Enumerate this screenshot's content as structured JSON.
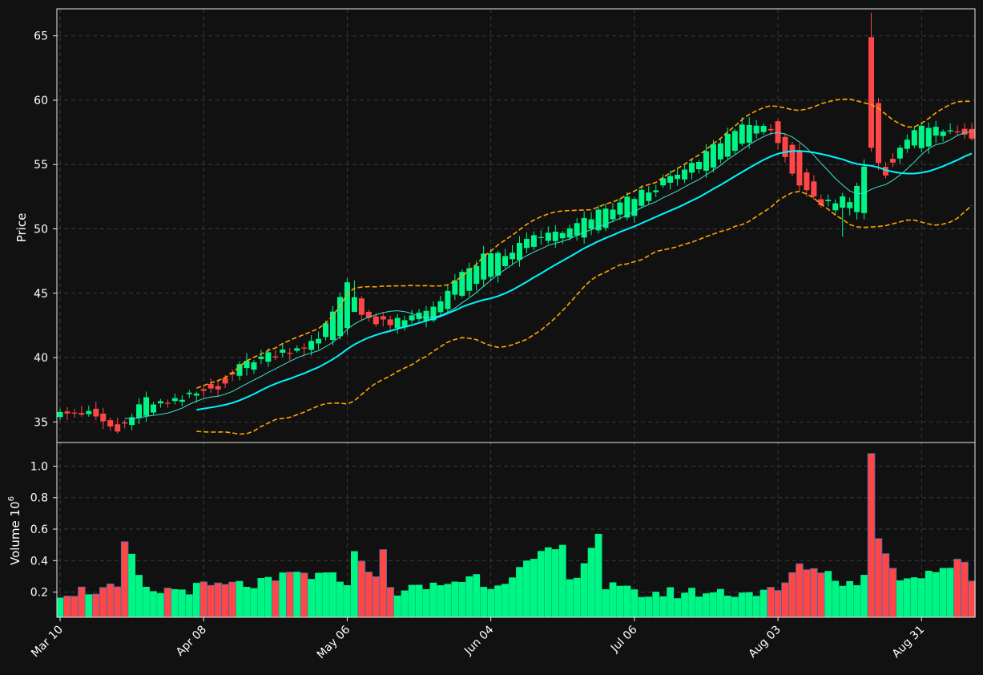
{
  "chart_data": {
    "type": "candlestick",
    "colors": {
      "background": "#111111",
      "up": "#00f587",
      "down": "#ff4747",
      "ma_fast": "#40e0d0",
      "ma_slow": "#00f5ff",
      "bollinger": "#ffa500",
      "grid": "#3a3a3a",
      "text": "#ffffff"
    },
    "price_panel": {
      "ylabel": "Price",
      "yticks": [
        35,
        40,
        45,
        50,
        55,
        60,
        65
      ],
      "ylim": [
        33.4,
        67.1
      ]
    },
    "volume_panel": {
      "ylabel": "Volume",
      "ylabel_exponent": "6",
      "yticks": [
        "0.2",
        "0.4",
        "0.6",
        "0.8",
        "1.0"
      ],
      "ylim": [
        0.04,
        1.15
      ]
    },
    "x_ticks": [
      {
        "label": "Mar 10",
        "index": 0
      },
      {
        "label": "Apr 08",
        "index": 20
      },
      {
        "label": "May 06",
        "index": 40
      },
      {
        "label": "Jun 04",
        "index": 60
      },
      {
        "label": "Jul 06",
        "index": 80
      },
      {
        "label": "Aug 03",
        "index": 100
      },
      {
        "label": "Aug 31",
        "index": 120
      }
    ],
    "anchors": {
      "open": [
        [
          0,
          35.6
        ],
        [
          5,
          35.8
        ],
        [
          8,
          34.8
        ],
        [
          12,
          35.4
        ],
        [
          15,
          36.6
        ],
        [
          19,
          36.9
        ],
        [
          22,
          38.1
        ],
        [
          26,
          39.0
        ],
        [
          30,
          40.2
        ],
        [
          33,
          40.6
        ],
        [
          36,
          41.0
        ],
        [
          40,
          42.1
        ],
        [
          42,
          44.5
        ],
        [
          44,
          43.2
        ],
        [
          48,
          42.4
        ],
        [
          52,
          43.0
        ],
        [
          55,
          44.6
        ],
        [
          59,
          46.0
        ],
        [
          62,
          46.8
        ],
        [
          66,
          48.9
        ],
        [
          70,
          49.2
        ],
        [
          75,
          50.0
        ],
        [
          80,
          51.3
        ],
        [
          84,
          53.2
        ],
        [
          88,
          54.4
        ],
        [
          92,
          55.1
        ],
        [
          96,
          56.8
        ],
        [
          100,
          58.3
        ],
        [
          103,
          55.8
        ],
        [
          106,
          52.2
        ],
        [
          110,
          51.3
        ],
        [
          112,
          51.2
        ],
        [
          113,
          64.9
        ],
        [
          115,
          54.5
        ],
        [
          117,
          55.8
        ],
        [
          120,
          56.4
        ],
        [
          124,
          57.4
        ],
        [
          127,
          57.7
        ]
      ],
      "close": [
        [
          0,
          36.1
        ],
        [
          5,
          35.4
        ],
        [
          8,
          34.2
        ],
        [
          12,
          36.7
        ],
        [
          15,
          36.3
        ],
        [
          19,
          37.2
        ],
        [
          22,
          37.8
        ],
        [
          26,
          39.7
        ],
        [
          30,
          40.4
        ],
        [
          33,
          40.8
        ],
        [
          36,
          41.3
        ],
        [
          40,
          45.9
        ],
        [
          42,
          43.6
        ],
        [
          44,
          42.6
        ],
        [
          48,
          42.8
        ],
        [
          52,
          44.0
        ],
        [
          55,
          45.9
        ],
        [
          59,
          47.8
        ],
        [
          62,
          47.9
        ],
        [
          66,
          49.5
        ],
        [
          70,
          49.6
        ],
        [
          75,
          51.2
        ],
        [
          80,
          52.5
        ],
        [
          84,
          53.6
        ],
        [
          88,
          54.8
        ],
        [
          92,
          56.9
        ],
        [
          96,
          58.4
        ],
        [
          100,
          57.0
        ],
        [
          103,
          53.1
        ],
        [
          106,
          51.8
        ],
        [
          110,
          52.4
        ],
        [
          112,
          54.6
        ],
        [
          113,
          56.3
        ],
        [
          115,
          54.2
        ],
        [
          117,
          56.6
        ],
        [
          120,
          57.9
        ],
        [
          124,
          57.6
        ],
        [
          127,
          57.1
        ]
      ],
      "volume": [
        [
          0,
          0.2
        ],
        [
          8,
          0.22
        ],
        [
          9,
          0.52
        ],
        [
          12,
          0.2
        ],
        [
          20,
          0.23
        ],
        [
          30,
          0.26
        ],
        [
          32,
          0.32
        ],
        [
          40,
          0.28
        ],
        [
          41,
          0.46
        ],
        [
          42,
          0.4
        ],
        [
          44,
          0.32
        ],
        [
          45,
          0.47
        ],
        [
          46,
          0.21
        ],
        [
          50,
          0.22
        ],
        [
          58,
          0.3
        ],
        [
          60,
          0.24
        ],
        [
          70,
          0.5
        ],
        [
          71,
          0.25
        ],
        [
          75,
          0.57
        ],
        [
          76,
          0.24
        ],
        [
          80,
          0.19
        ],
        [
          90,
          0.2
        ],
        [
          100,
          0.2
        ],
        [
          103,
          0.38
        ],
        [
          106,
          0.34
        ],
        [
          110,
          0.25
        ],
        [
          112,
          0.3
        ],
        [
          113,
          1.08
        ],
        [
          114,
          0.54
        ],
        [
          115,
          0.42
        ],
        [
          116,
          0.38
        ],
        [
          117,
          0.29
        ],
        [
          120,
          0.32
        ],
        [
          126,
          0.39
        ],
        [
          127,
          0.28
        ]
      ]
    }
  }
}
